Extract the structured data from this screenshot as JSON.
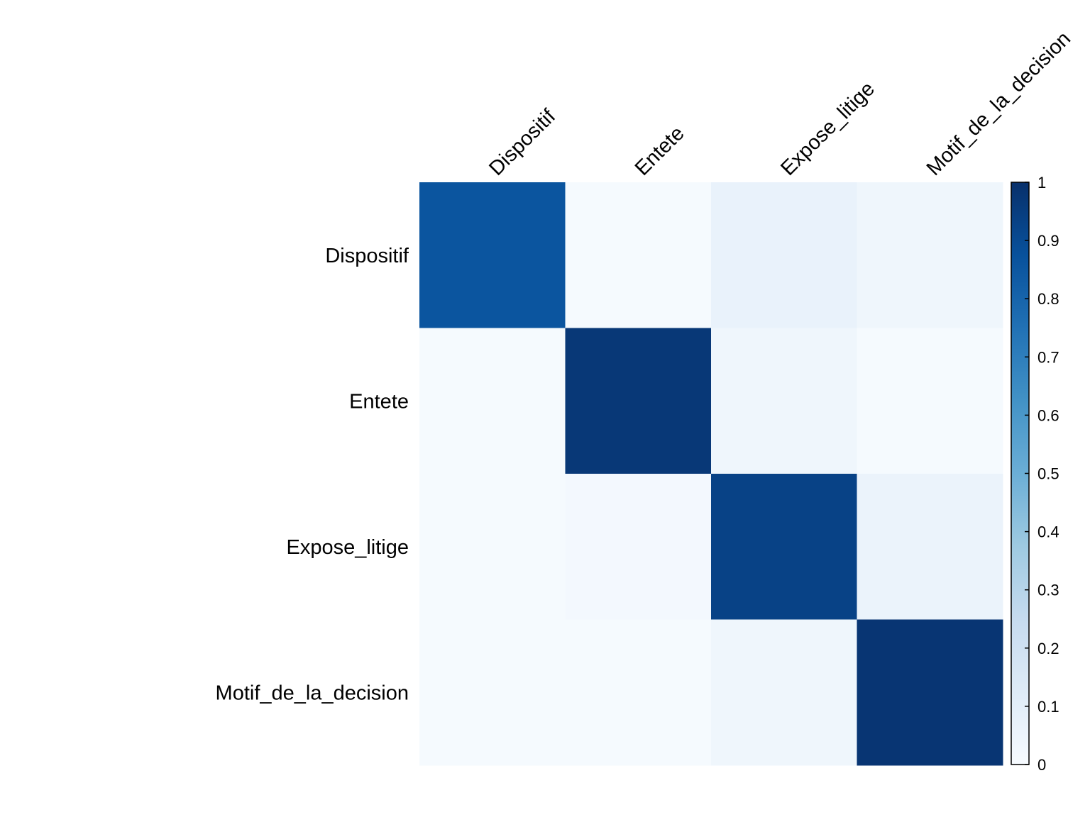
{
  "chart_data": {
    "type": "heatmap",
    "rows": [
      "Dispositif",
      "Entete",
      "Expose_litige",
      "Motif_de_la_decision"
    ],
    "columns": [
      "Dispositif",
      "Entete",
      "Expose_litige",
      "Motif_de_la_decision"
    ],
    "values": [
      [
        0.86,
        0.01,
        0.07,
        0.04
      ],
      [
        0.01,
        0.97,
        0.04,
        0.01
      ],
      [
        0.01,
        0.02,
        0.93,
        0.06
      ],
      [
        0.01,
        0.01,
        0.04,
        0.98
      ]
    ],
    "colorbar": {
      "min": 0,
      "max": 1,
      "ticks": [
        "0",
        "0.1",
        "0.2",
        "0.3",
        "0.4",
        "0.5",
        "0.6",
        "0.7",
        "0.8",
        "0.9",
        "1"
      ],
      "colormap": "Blues",
      "colors": [
        "#f7fbff",
        "#deebf7",
        "#c6dbef",
        "#9ecae1",
        "#6baed6",
        "#4292c6",
        "#2171b5",
        "#08519c",
        "#08306b"
      ]
    },
    "column_label_position": "top",
    "column_label_rotation": "45deg",
    "grid": false
  }
}
